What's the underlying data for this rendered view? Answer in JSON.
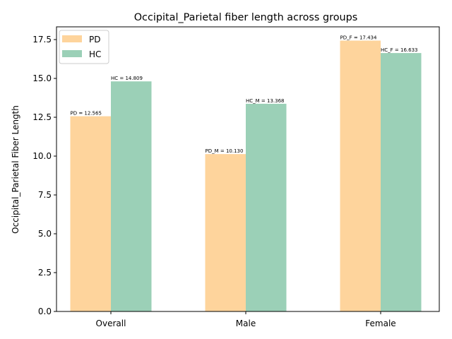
{
  "chart_data": {
    "type": "bar",
    "title": "Occipital_Parietal fiber length across groups",
    "xlabel": "",
    "ylabel": "Occipital_Parietal Fiber Length",
    "categories": [
      "Overall",
      "Male",
      "Female"
    ],
    "ylim": [
      0,
      18.32
    ],
    "yticks": [
      "0.0",
      "2.5",
      "5.0",
      "7.5",
      "10.0",
      "12.5",
      "15.0",
      "17.5"
    ],
    "ytick_values": [
      0,
      2.5,
      5,
      7.5,
      10,
      12.5,
      15,
      17.5
    ],
    "grid": false,
    "legend_position": "top-left",
    "series": [
      {
        "name": "PD",
        "color": "#fed49c",
        "values": [
          12.565,
          10.13,
          17.434
        ],
        "labels": [
          "PD = 12.565",
          "PD_M = 10.130",
          "PD_F = 17.434"
        ]
      },
      {
        "name": "HC",
        "color": "#9bd0b7",
        "values": [
          14.809,
          13.368,
          16.633
        ],
        "labels": [
          "HC = 14.809",
          "HC_M = 13.368",
          "HC_F = 16.633"
        ]
      }
    ]
  }
}
